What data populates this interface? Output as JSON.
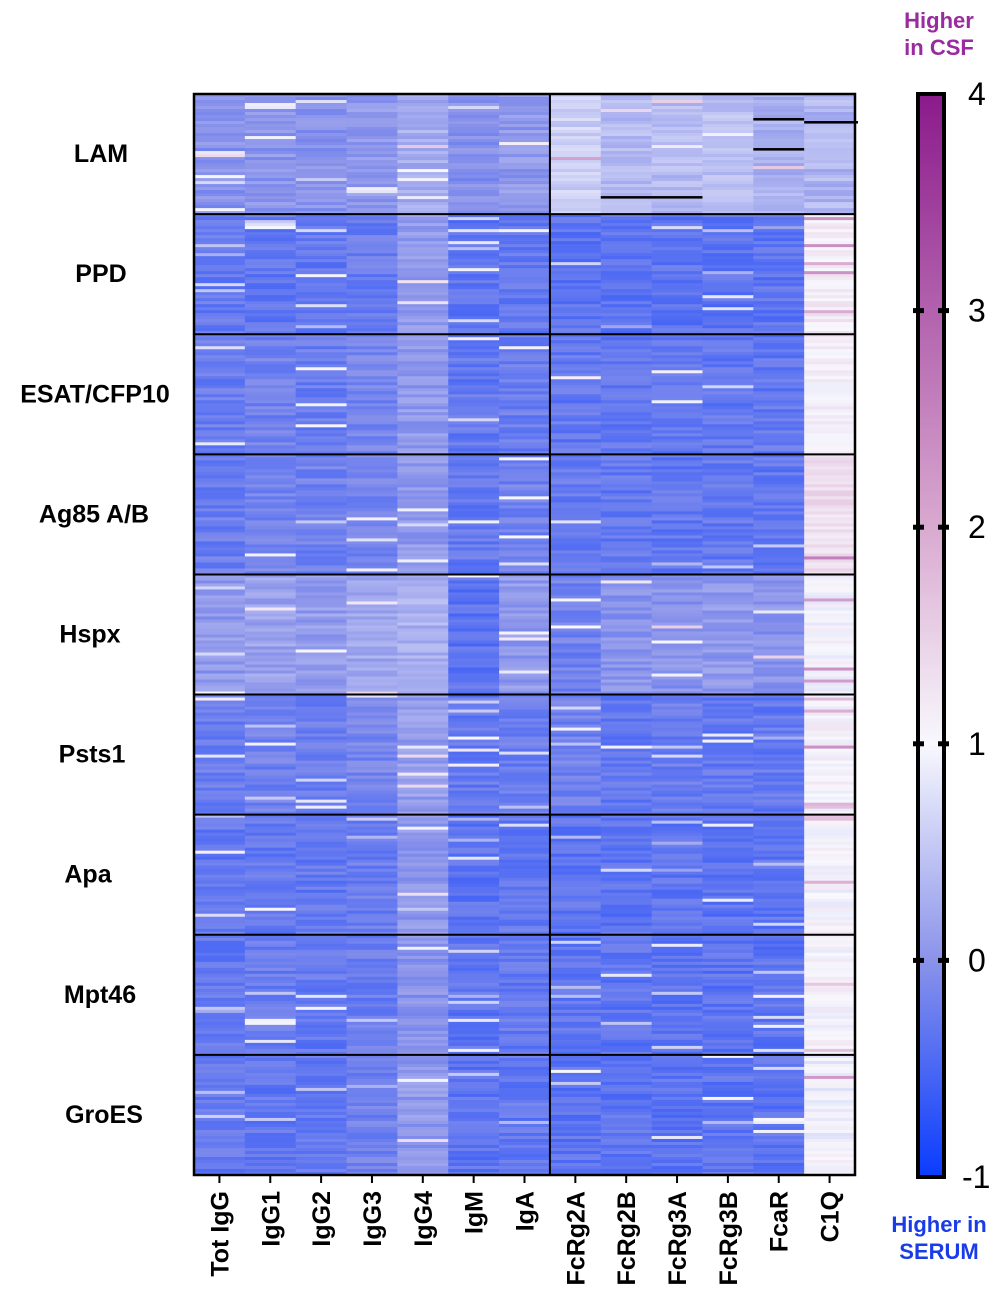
{
  "chart_data": {
    "type": "heatmap",
    "columns": [
      "Tot IgG",
      "IgG1",
      "IgG2",
      "IgG3",
      "IgG4",
      "IgM",
      "IgA",
      "FcRg2A",
      "FcRg2B",
      "FcRg3A",
      "FcRg3B",
      "FcaR",
      "C1Q"
    ],
    "row_groups": [
      {
        "label": "LAM",
        "base": [
          -0.02,
          0.02,
          0.0,
          0.05,
          0.25,
          -0.05,
          0.05,
          0.6,
          0.4,
          0.4,
          0.45,
          0.3,
          0.35
        ]
      },
      {
        "label": "PPD",
        "base": [
          -0.3,
          -0.3,
          -0.3,
          -0.25,
          0.05,
          -0.35,
          -0.3,
          -0.35,
          -0.35,
          -0.35,
          -0.35,
          -0.35,
          1.15
        ]
      },
      {
        "label": "ESAT/CFP10",
        "base": [
          -0.25,
          -0.2,
          -0.25,
          -0.15,
          0.05,
          -0.3,
          -0.25,
          -0.3,
          -0.3,
          -0.3,
          -0.3,
          -0.3,
          1.1
        ]
      },
      {
        "label": "Ag85 A/B",
        "base": [
          -0.25,
          -0.15,
          -0.2,
          -0.15,
          0.05,
          -0.3,
          -0.2,
          -0.3,
          -0.3,
          -0.3,
          -0.3,
          -0.3,
          1.35
        ]
      },
      {
        "label": "Hspx",
        "base": [
          0.05,
          0.15,
          0.1,
          0.2,
          0.3,
          -0.35,
          0.05,
          -0.2,
          0.0,
          0.0,
          0.05,
          0.0,
          1.0
        ]
      },
      {
        "label": "Psts1",
        "base": [
          -0.25,
          -0.2,
          -0.25,
          -0.15,
          0.1,
          -0.3,
          -0.25,
          -0.2,
          -0.3,
          -0.25,
          -0.3,
          -0.3,
          1.05
        ]
      },
      {
        "label": "Apa",
        "base": [
          -0.3,
          -0.3,
          -0.3,
          -0.25,
          0.05,
          -0.35,
          -0.3,
          -0.35,
          -0.35,
          -0.35,
          -0.35,
          -0.35,
          1.0
        ]
      },
      {
        "label": "Mpt46",
        "base": [
          -0.3,
          -0.25,
          -0.3,
          -0.25,
          0.0,
          -0.35,
          -0.3,
          -0.35,
          -0.35,
          -0.35,
          -0.35,
          -0.35,
          1.05
        ]
      },
      {
        "label": "GroES",
        "base": [
          -0.3,
          -0.3,
          -0.3,
          -0.2,
          0.05,
          -0.35,
          -0.3,
          -0.35,
          -0.35,
          -0.35,
          -0.35,
          -0.35,
          0.95
        ]
      }
    ],
    "rows_per_group": 40,
    "color_scale": {
      "min": -1,
      "max": 4,
      "stops": [
        {
          "value": -1,
          "color": "#0a3cff"
        },
        {
          "value": 0,
          "color": "#8a93ea"
        },
        {
          "value": 1,
          "color": "#f8f8fd"
        },
        {
          "value": 2,
          "color": "#d9a9d0"
        },
        {
          "value": 4,
          "color": "#8b1a8b"
        }
      ],
      "ticks": [
        4,
        3,
        2,
        1,
        0,
        -1
      ]
    },
    "legend_top_label": [
      "Higher",
      "in CSF"
    ],
    "legend_bottom_label": [
      "Higher in",
      "SERUM"
    ],
    "top_label_color": "#9a2aa0",
    "bottom_label_color": "#1a3ce8",
    "missing_color": "#000000"
  }
}
